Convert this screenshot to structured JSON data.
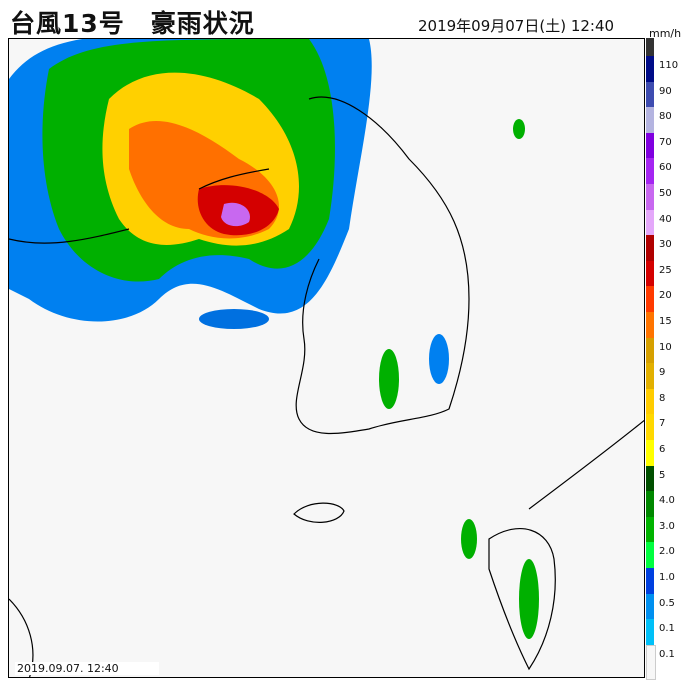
{
  "header": {
    "title": "台風13号　豪雨状況",
    "datetime": "2019年09月07日(土) 12:40"
  },
  "map": {
    "timestamp": "2019.09.07. 12:40"
  },
  "legend": {
    "unit": "mm/h",
    "labels": [
      "110",
      "90",
      "80",
      "70",
      "60",
      "50",
      "40",
      "30",
      "25",
      "20",
      "15",
      "10",
      "9",
      "8",
      "7",
      "6",
      "5",
      "4.0",
      "3.0",
      "2.0",
      "1.0",
      "0.5",
      "0.1",
      "0.1"
    ],
    "colors": [
      "#333333",
      "#000c88",
      "#3e4cb0",
      "#b4b4e0",
      "#8000e0",
      "#a526f2",
      "#c868f0",
      "#e4a8fa",
      "#b00000",
      "#d40000",
      "#ff3a00",
      "#ff7400",
      "#d6a000",
      "#e2b000",
      "#ffcc00",
      "#ffd800",
      "#ffff00",
      "#005000",
      "#008800",
      "#00b400",
      "#00ff40",
      "#0040e0",
      "#0090f0",
      "#00c0f8",
      "#f7f7f7"
    ]
  }
}
